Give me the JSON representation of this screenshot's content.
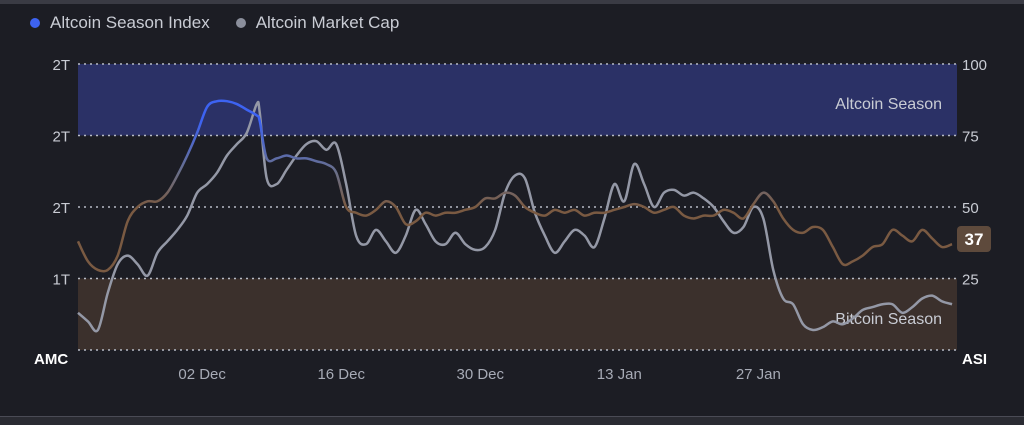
{
  "legend": {
    "asi_label": "Altcoin Season Index",
    "amc_label": "Altcoin Market Cap",
    "asi_color": "#3d63f2",
    "amc_color": "#8b8f9c"
  },
  "zones": {
    "altcoin_label": "Altcoin Season",
    "bitcoin_label": "Bitcoin Season",
    "altcoin_color": "#2b3166",
    "bitcoin_color": "#3b302c"
  },
  "chart_data": {
    "type": "line",
    "left_axis_label": "AMC",
    "right_axis_label": "ASI",
    "left_ticks": [
      "2T",
      "2T",
      "2T",
      "1T"
    ],
    "right_ticks": [
      "100",
      "75",
      "50",
      "25"
    ],
    "right_range": [
      0,
      100
    ],
    "x_ticks": [
      "02 Dec",
      "16 Dec",
      "30 Dec",
      "13 Jan",
      "27 Jan"
    ],
    "x_tick_positions": [
      10,
      24,
      38,
      52,
      66
    ],
    "x_range": [
      -2.5,
      86
    ],
    "current_value": "37",
    "series": [
      {
        "name": "Altcoin Season Index",
        "color_dark": "#7a5a42",
        "color_mid": "#6a6f88",
        "color_high": "#3d63f2",
        "values": [
          [
            -2.5,
            38
          ],
          [
            -1.5,
            31
          ],
          [
            -0.5,
            28
          ],
          [
            0.5,
            28
          ],
          [
            1.5,
            33
          ],
          [
            2.5,
            45
          ],
          [
            3.5,
            50
          ],
          [
            4.5,
            52
          ],
          [
            5.5,
            52
          ],
          [
            6.5,
            55
          ],
          [
            7.5,
            61
          ],
          [
            8.5,
            68
          ],
          [
            9.5,
            76
          ],
          [
            10.5,
            85
          ],
          [
            11.5,
            87
          ],
          [
            12.5,
            87
          ],
          [
            13.5,
            86
          ],
          [
            14.5,
            84
          ],
          [
            15.5,
            82
          ],
          [
            15.8,
            80
          ],
          [
            16.5,
            67
          ],
          [
            17.5,
            67
          ],
          [
            18.5,
            68
          ],
          [
            19.5,
            67
          ],
          [
            20.5,
            67
          ],
          [
            21.5,
            66
          ],
          [
            22.5,
            65
          ],
          [
            23.5,
            62
          ],
          [
            24.5,
            50
          ],
          [
            25.5,
            48
          ],
          [
            26.5,
            47
          ],
          [
            27.5,
            49
          ],
          [
            28.5,
            52
          ],
          [
            29.5,
            50
          ],
          [
            30.5,
            44
          ],
          [
            31.5,
            45
          ],
          [
            32.5,
            48
          ],
          [
            33.5,
            47
          ],
          [
            34.5,
            48
          ],
          [
            35.5,
            48
          ],
          [
            36.5,
            49
          ],
          [
            37.5,
            50
          ],
          [
            38.5,
            53
          ],
          [
            39.5,
            53
          ],
          [
            40.5,
            55
          ],
          [
            41.5,
            54
          ],
          [
            42.5,
            50
          ],
          [
            43.5,
            48
          ],
          [
            44.5,
            47
          ],
          [
            45.5,
            49
          ],
          [
            46.5,
            48
          ],
          [
            47.5,
            49
          ],
          [
            48.5,
            47
          ],
          [
            49.5,
            48
          ],
          [
            50.5,
            48
          ],
          [
            51.5,
            49
          ],
          [
            52.5,
            50
          ],
          [
            53.5,
            51
          ],
          [
            54.5,
            50
          ],
          [
            55.5,
            48
          ],
          [
            56.5,
            49
          ],
          [
            57.5,
            50
          ],
          [
            58.5,
            47
          ],
          [
            59.5,
            46
          ],
          [
            60.5,
            47
          ],
          [
            61.5,
            47
          ],
          [
            62.5,
            49
          ],
          [
            63.5,
            48
          ],
          [
            64.5,
            46
          ],
          [
            65.5,
            51
          ],
          [
            66.5,
            55
          ],
          [
            67.5,
            52
          ],
          [
            68.5,
            46
          ],
          [
            69.5,
            42
          ],
          [
            70.5,
            41
          ],
          [
            71.5,
            43
          ],
          [
            72.5,
            42
          ],
          [
            73.5,
            36
          ],
          [
            74.5,
            30
          ],
          [
            75.5,
            31
          ],
          [
            76.5,
            33
          ],
          [
            77.5,
            36
          ],
          [
            78.5,
            37
          ],
          [
            79.5,
            42
          ],
          [
            80.5,
            40
          ],
          [
            81.5,
            38
          ],
          [
            82.5,
            42
          ],
          [
            83.5,
            39
          ],
          [
            84.5,
            36
          ],
          [
            85.5,
            37
          ]
        ]
      },
      {
        "name": "Altcoin Market Cap",
        "color": "#9498a6",
        "values": [
          [
            -2.5,
            13
          ],
          [
            -1.5,
            10
          ],
          [
            -0.5,
            7
          ],
          [
            0.5,
            20
          ],
          [
            1.5,
            30
          ],
          [
            2.5,
            33
          ],
          [
            3.5,
            30
          ],
          [
            4.5,
            26
          ],
          [
            5.5,
            34
          ],
          [
            6.5,
            38
          ],
          [
            7.5,
            42
          ],
          [
            8.5,
            47
          ],
          [
            9.5,
            55
          ],
          [
            10.5,
            58
          ],
          [
            11.5,
            62
          ],
          [
            12.5,
            68
          ],
          [
            13.5,
            72
          ],
          [
            14.5,
            76
          ],
          [
            15.5,
            86
          ],
          [
            15.8,
            83
          ],
          [
            16.5,
            60
          ],
          [
            17.5,
            58
          ],
          [
            18.5,
            63
          ],
          [
            19.5,
            68
          ],
          [
            20.5,
            72
          ],
          [
            21.5,
            73
          ],
          [
            22.5,
            70
          ],
          [
            23.5,
            72
          ],
          [
            24.5,
            58
          ],
          [
            25.5,
            40
          ],
          [
            26.5,
            37
          ],
          [
            27.5,
            42
          ],
          [
            28.5,
            38
          ],
          [
            29.5,
            34
          ],
          [
            30.5,
            40
          ],
          [
            31.5,
            49
          ],
          [
            32.5,
            44
          ],
          [
            33.5,
            38
          ],
          [
            34.5,
            37
          ],
          [
            35.5,
            41
          ],
          [
            36.5,
            37
          ],
          [
            37.5,
            35
          ],
          [
            38.5,
            36
          ],
          [
            39.5,
            42
          ],
          [
            40.5,
            55
          ],
          [
            41.5,
            61
          ],
          [
            42.5,
            60
          ],
          [
            43.5,
            48
          ],
          [
            44.5,
            40
          ],
          [
            45.5,
            34
          ],
          [
            46.5,
            38
          ],
          [
            47.5,
            42
          ],
          [
            48.5,
            40
          ],
          [
            49.5,
            36
          ],
          [
            50.5,
            46
          ],
          [
            51.5,
            58
          ],
          [
            52.5,
            52
          ],
          [
            53.5,
            65
          ],
          [
            54.5,
            58
          ],
          [
            55.5,
            50
          ],
          [
            56.5,
            55
          ],
          [
            57.5,
            56
          ],
          [
            58.5,
            54
          ],
          [
            59.5,
            55
          ],
          [
            60.5,
            53
          ],
          [
            61.5,
            50
          ],
          [
            62.5,
            45
          ],
          [
            63.5,
            41
          ],
          [
            64.5,
            43
          ],
          [
            65.5,
            50
          ],
          [
            66.5,
            46
          ],
          [
            67.5,
            28
          ],
          [
            68.5,
            18
          ],
          [
            69.5,
            16
          ],
          [
            70.5,
            9
          ],
          [
            71.5,
            7
          ],
          [
            72.5,
            8
          ],
          [
            73.5,
            10
          ],
          [
            74.5,
            9
          ],
          [
            75.5,
            11
          ],
          [
            76.5,
            14
          ],
          [
            77.5,
            15
          ],
          [
            78.5,
            16
          ],
          [
            79.5,
            16
          ],
          [
            80.5,
            13
          ],
          [
            81.5,
            15
          ],
          [
            82.5,
            18
          ],
          [
            83.5,
            19
          ],
          [
            84.5,
            17
          ],
          [
            85.5,
            16
          ]
        ]
      }
    ]
  }
}
